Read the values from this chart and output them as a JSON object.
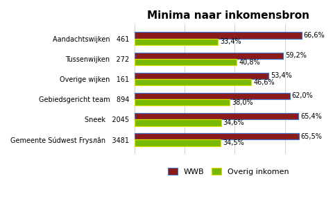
{
  "title": "Minima naar inkomensbron",
  "categories": [
    "Gemeente Súdwest Frysлân",
    "Sneek",
    "Gebiedsgericht team",
    "Overige wijken",
    "Tussenwijken",
    "Aandachtswijken"
  ],
  "counts": [
    3481,
    2045,
    894,
    161,
    272,
    461
  ],
  "wwb_values": [
    65.5,
    65.4,
    62.0,
    53.4,
    59.2,
    66.6
  ],
  "overig_values": [
    34.5,
    34.6,
    38.0,
    46.6,
    40.8,
    33.4
  ],
  "wwb_color": "#8B1A1A",
  "overig_color": "#76B900",
  "overig_edge_color": "#DDDD00",
  "wwb_edge_color": "#4472C4",
  "background_color": "#FFFFFF",
  "grid_color": "#C0C0C0",
  "title_fontsize": 11,
  "label_fontsize": 7,
  "tick_fontsize": 7,
  "legend_labels": [
    "WWB",
    "Overig inkomen"
  ],
  "xlim": [
    0,
    75
  ]
}
